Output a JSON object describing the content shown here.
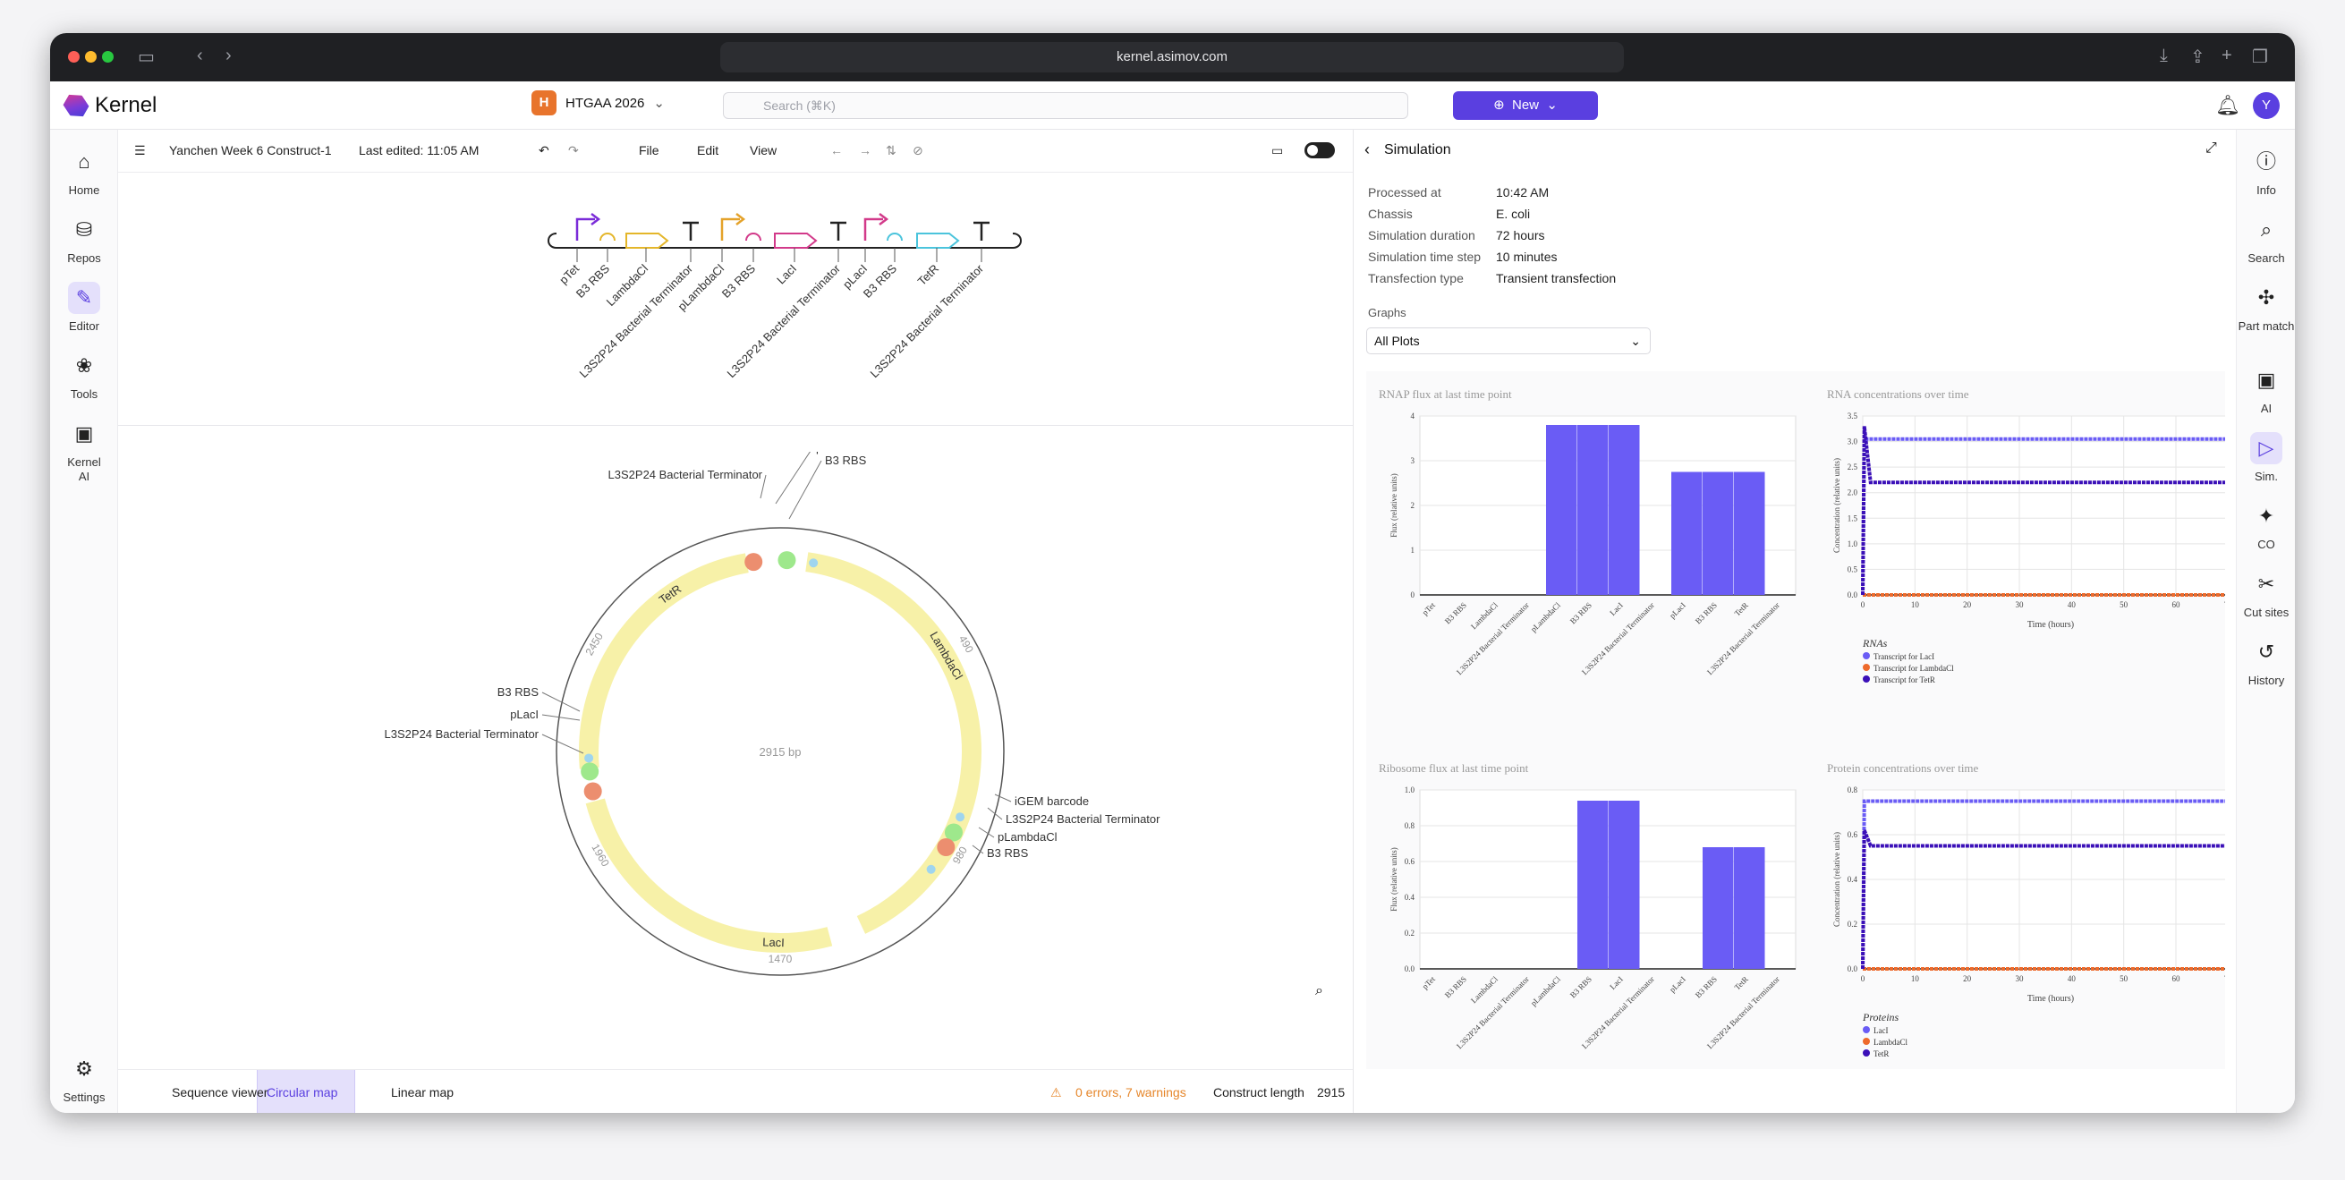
{
  "browser": {
    "url": "kernel.asimov.com"
  },
  "app": {
    "brand": "Kernel",
    "project": "HTGAA 2026",
    "project_initial": "H",
    "search_placeholder": "Search (⌘K)",
    "new_label": "New",
    "avatar": "Y"
  },
  "left_nav": [
    {
      "label": "Home",
      "icon": "home-icon"
    },
    {
      "label": "Repos",
      "icon": "database-icon"
    },
    {
      "label": "Editor",
      "icon": "pencil-icon",
      "active": true
    },
    {
      "label": "Tools",
      "icon": "tools-icon"
    },
    {
      "label": "Kernel AI",
      "icon": "chip-icon"
    },
    {
      "label": "Settings",
      "icon": "gear-icon"
    }
  ],
  "right_nav": [
    {
      "label": "Info",
      "icon": "info-icon"
    },
    {
      "label": "Search",
      "icon": "search-icon"
    },
    {
      "label": "Part match",
      "icon": "puzzle-icon"
    },
    {
      "label": "AI",
      "icon": "chip-icon"
    },
    {
      "label": "Sim.",
      "icon": "play-icon",
      "active": true
    },
    {
      "label": "CO",
      "icon": "sparkle-icon"
    },
    {
      "label": "Cut sites",
      "icon": "scissors-icon"
    },
    {
      "label": "History",
      "icon": "history-icon"
    }
  ],
  "editor": {
    "doc_title": "Yanchen Week 6 Construct-1",
    "last_edited": "Last edited: 11:05 AM",
    "menus": [
      "File",
      "Edit",
      "View"
    ],
    "parts": [
      "pTet",
      "B3 RBS",
      "LambdaCl",
      "L3S2P24 Bacterial Terminator",
      "pLambdaCl",
      "B3 RBS",
      "LacI",
      "L3S2P24 Bacterial Terminator",
      "pLacI",
      "B3 RBS",
      "TetR",
      "L3S2P24 Bacterial Terminator"
    ],
    "map": {
      "center": "2915 bp",
      "ticks": [
        "490",
        "980",
        "1470",
        "1960",
        "2450"
      ],
      "features": [
        "TetR",
        "LambdaCl",
        "LacI"
      ],
      "labels": [
        "pTet",
        "B3 RBS",
        "L3S2P24 Bacterial Terminator",
        "iGEM barcode",
        "L3S2P24 Bacterial Terminator",
        "pLambdaCl",
        "B3 RBS",
        "B3 RBS",
        "pLacI",
        "L3S2P24 Bacterial Terminator"
      ]
    }
  },
  "bottom": {
    "tabs": [
      "Sequence viewer",
      "Circular map",
      "Linear map"
    ],
    "warnings": "0 errors, 7 warnings",
    "length_label": "Construct length",
    "length": "2915"
  },
  "simulation": {
    "title": "Simulation",
    "meta": [
      [
        "Processed at",
        "10:42 AM"
      ],
      [
        "Chassis",
        "E. coli"
      ],
      [
        "Simulation duration",
        "72 hours"
      ],
      [
        "Simulation time step",
        "10 minutes"
      ],
      [
        "Transfection type",
        "Transient transfection"
      ]
    ],
    "graphs_label": "Graphs",
    "graphs_select": "All Plots"
  },
  "chart_data": [
    {
      "type": "bar",
      "title": "RNAP flux at last time point",
      "ylabel": "Flux (relative units)",
      "ylim": [
        0,
        4
      ],
      "yticks": [
        "0",
        "1",
        "2",
        "3",
        "4"
      ],
      "categories": [
        "pTet",
        "B3 RBS",
        "LambdaCl",
        "L3S2P24 Bacterial Terminator",
        "pLambdaCl",
        "B3 RBS",
        "LacI",
        "L3S2P24 Bacterial Terminator",
        "pLacI",
        "B3 RBS",
        "TetR",
        "L3S2P24 Bacterial Terminator"
      ],
      "values": [
        0,
        0,
        0,
        0,
        3.8,
        3.8,
        3.8,
        0,
        2.75,
        2.75,
        2.75,
        0
      ],
      "color": "#6a5cf5"
    },
    {
      "type": "line",
      "title": "RNA concentrations over time",
      "xlabel": "Time (hours)",
      "ylabel": "Concentration (relative units)",
      "xlim": [
        0,
        72
      ],
      "ylim": [
        0,
        3.5
      ],
      "xticks": [
        "0",
        "10",
        "20",
        "30",
        "40",
        "50",
        "60",
        "70"
      ],
      "yticks": [
        "0.0",
        "0.5",
        "1.0",
        "1.5",
        "2.0",
        "2.5",
        "3.0",
        "3.5"
      ],
      "legend_title": "RNAs",
      "series": [
        {
          "name": "Transcript for LacI",
          "color": "#6a5cf5",
          "final": 3.05,
          "peak": 3.05
        },
        {
          "name": "Transcript for LambdaCl",
          "color": "#ee6a2b",
          "final": 0.0,
          "peak": 0.0
        },
        {
          "name": "Transcript for TetR",
          "color": "#3b10b8",
          "final": 2.2,
          "peak": 3.3
        }
      ]
    },
    {
      "type": "bar",
      "title": "Ribosome flux at last time point",
      "ylabel": "Flux (relative units)",
      "ylim": [
        0,
        1
      ],
      "yticks": [
        "0.0",
        "0.2",
        "0.4",
        "0.6",
        "0.8",
        "1.0"
      ],
      "categories": [
        "pTet",
        "B3 RBS",
        "LambdaCl",
        "L3S2P24 Bacterial Terminator",
        "pLambdaCl",
        "B3 RBS",
        "LacI",
        "L3S2P24 Bacterial Terminator",
        "pLacI",
        "B3 RBS",
        "TetR",
        "L3S2P24 Bacterial Terminator"
      ],
      "values": [
        0,
        0,
        0,
        0,
        0,
        0.94,
        0.94,
        0,
        0,
        0.68,
        0.68,
        0
      ],
      "color": "#6a5cf5"
    },
    {
      "type": "line",
      "title": "Protein concentrations over time",
      "xlabel": "Time (hours)",
      "ylabel": "Concentration (relative units)",
      "xlim": [
        0,
        72
      ],
      "ylim": [
        0,
        0.8
      ],
      "xticks": [
        "0",
        "10",
        "20",
        "30",
        "40",
        "50",
        "60",
        "70"
      ],
      "yticks": [
        "0.0",
        "0.2",
        "0.4",
        "0.6",
        "0.8"
      ],
      "legend_title": "Proteins",
      "series": [
        {
          "name": "LacI",
          "color": "#6a5cf5",
          "final": 0.75,
          "peak": 0.75
        },
        {
          "name": "LambdaCl",
          "color": "#ee6a2b",
          "final": 0.0,
          "peak": 0.0
        },
        {
          "name": "TetR",
          "color": "#3b10b8",
          "final": 0.55,
          "peak": 0.62
        }
      ]
    }
  ]
}
